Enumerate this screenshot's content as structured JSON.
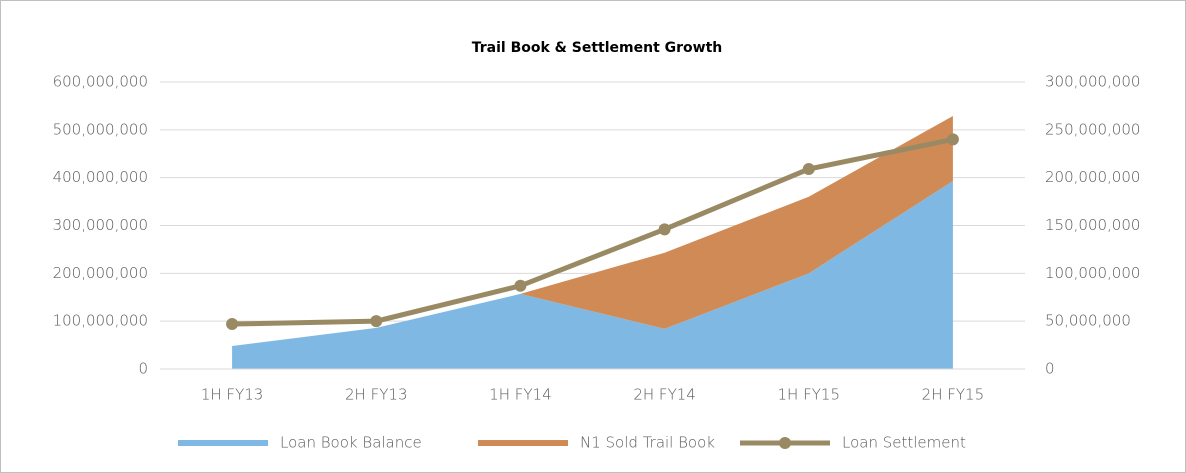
{
  "chart_data": {
    "type": "stacked-area-line",
    "title": "Trail Book & Settlement Growth",
    "categories": [
      "1H FY13",
      "2H FY13",
      "1H FY14",
      "2H FY14",
      "1H FY15",
      "2H FY15"
    ],
    "series": [
      {
        "name": "Loan Book Balance",
        "color": "#7fb9e3",
        "values": [
          48000000,
          86000000,
          157000000,
          84000000,
          200000000,
          393000000
        ]
      },
      {
        "name": "N1 Sold Trail Book",
        "color": "#d08a56",
        "values": [
          0,
          0,
          0,
          159000000,
          160000000,
          136000000
        ]
      },
      {
        "name": "Loan Settlement",
        "color": "#9a8a64",
        "axis": "y2",
        "values": [
          47000000,
          50000000,
          87000000,
          146000000,
          209000000,
          240000000
        ]
      }
    ],
    "ylim": [
      0,
      600000000
    ],
    "yticks": [
      0,
      {
        "value": 100000000,
        "label": "100,000,000"
      },
      {
        "value": 200000000,
        "label": "200,000,000"
      },
      {
        "value": 300000000,
        "label": "300,000,000"
      },
      {
        "value": 400000000,
        "label": "400,000,000"
      },
      {
        "value": 500000000,
        "label": "500,000,000"
      },
      {
        "value": 600000000,
        "label": "600,000,000"
      }
    ],
    "y2lim": [
      0,
      300000000
    ],
    "y2ticks": [
      0,
      {
        "value": 50000000,
        "label": "50,000,000"
      },
      {
        "value": 100000000,
        "label": "100,000,000"
      },
      {
        "value": 150000000,
        "label": "150,000,000"
      },
      {
        "value": 200000000,
        "label": "200,000,000"
      },
      {
        "value": 250000000,
        "label": "250,000,000"
      },
      {
        "value": 300000000,
        "label": "300,000,000"
      }
    ],
    "grid": true,
    "legend": "bottom"
  }
}
